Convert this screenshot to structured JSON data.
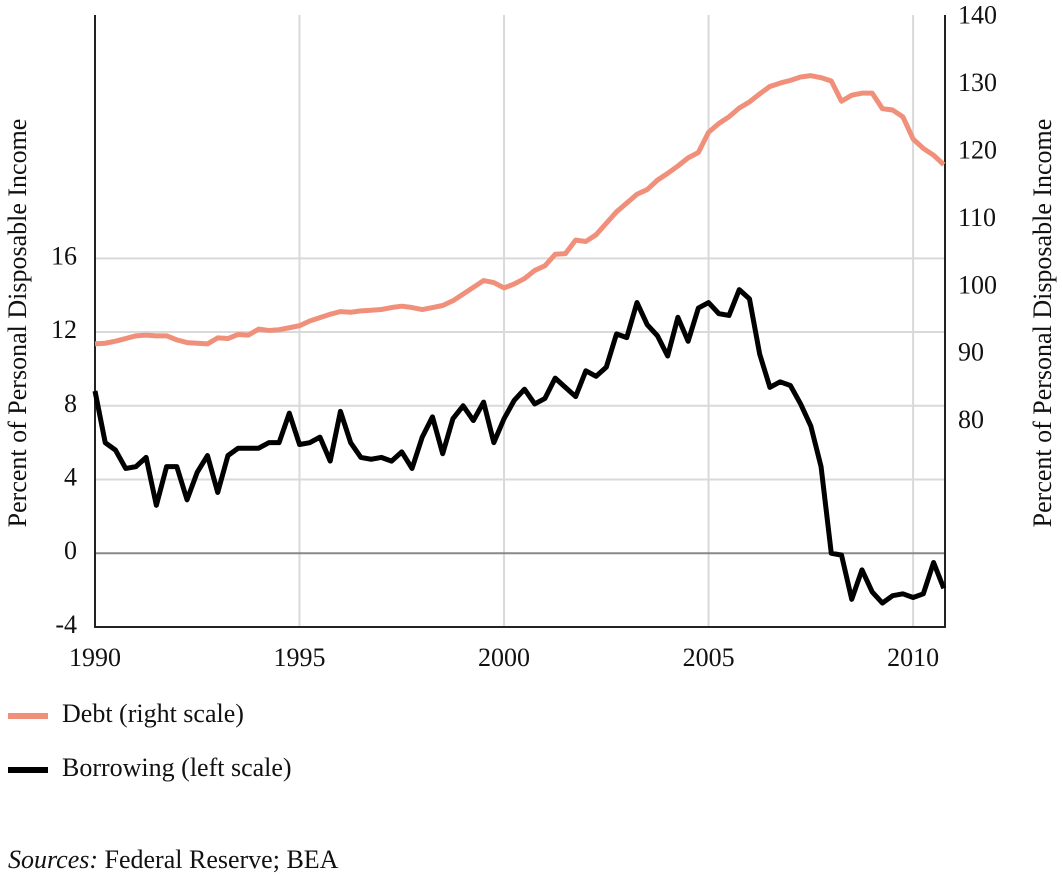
{
  "chart_data": {
    "type": "line",
    "y_label": "Percent of Personal Disposable Income",
    "y2_label": "Percent of Personal Disposable Income",
    "source": {
      "label": "Sources:",
      "text": "Federal Reserve; BEA"
    },
    "x": [
      1990,
      1990.25,
      1990.5,
      1990.75,
      1991,
      1991.25,
      1991.5,
      1991.75,
      1992,
      1992.25,
      1992.5,
      1992.75,
      1993,
      1993.25,
      1993.5,
      1993.75,
      1994,
      1994.25,
      1994.5,
      1994.75,
      1995,
      1995.25,
      1995.5,
      1995.75,
      1996,
      1996.25,
      1996.5,
      1996.75,
      1997,
      1997.25,
      1997.5,
      1997.75,
      1998,
      1998.25,
      1998.5,
      1998.75,
      1999,
      1999.25,
      1999.5,
      1999.75,
      2000,
      2000.25,
      2000.5,
      2000.75,
      2001,
      2001.25,
      2001.5,
      2001.75,
      2002,
      2002.25,
      2002.5,
      2002.75,
      2003,
      2003.25,
      2003.5,
      2003.75,
      2004,
      2004.25,
      2004.5,
      2004.75,
      2005,
      2005.25,
      2005.5,
      2005.75,
      2006,
      2006.25,
      2006.5,
      2006.75,
      2007,
      2007.25,
      2007.5,
      2007.75,
      2008,
      2008.25,
      2008.5,
      2008.75,
      2009,
      2009.25,
      2009.5,
      2009.75,
      2010,
      2010.25,
      2010.5,
      2010.75
    ],
    "series": [
      {
        "name": "Debt (right scale)",
        "color": "#f0907a",
        "axis": "y2",
        "values": [
          91.6,
          91.7,
          92.0,
          92.4,
          92.8,
          92.9,
          92.8,
          92.8,
          92.2,
          91.8,
          91.7,
          91.6,
          92.5,
          92.4,
          93.0,
          92.9,
          93.8,
          93.6,
          93.7,
          94.0,
          94.3,
          95.0,
          95.5,
          96.0,
          96.4,
          96.3,
          96.5,
          96.6,
          96.7,
          97.0,
          97.2,
          97.0,
          96.7,
          97.0,
          97.3,
          98.0,
          99.0,
          100.0,
          101.0,
          100.7,
          99.9,
          100.5,
          101.3,
          102.5,
          103.2,
          104.9,
          105.0,
          107.0,
          106.8,
          107.8,
          109.5,
          111.2,
          112.5,
          113.8,
          114.5,
          115.9,
          116.9,
          118.0,
          119.2,
          120.0,
          123.0,
          124.3,
          125.3,
          126.6,
          127.5,
          128.7,
          129.8,
          130.3,
          130.7,
          131.2,
          131.4,
          131.1,
          130.6,
          127.6,
          128.5,
          128.8,
          128.8,
          126.5,
          126.3,
          125.3,
          122.0,
          120.6,
          119.6,
          118.2
        ]
      },
      {
        "name": "Borrowing (left scale)",
        "color": "#000000",
        "values": [
          8.8,
          6.0,
          5.6,
          4.6,
          4.7,
          5.2,
          2.6,
          4.7,
          4.7,
          2.9,
          4.4,
          5.3,
          3.3,
          5.3,
          5.7,
          5.7,
          5.7,
          6.0,
          6.0,
          7.6,
          5.9,
          6.0,
          6.3,
          5.0,
          7.7,
          6.0,
          5.2,
          5.1,
          5.2,
          5.0,
          5.5,
          4.6,
          6.3,
          7.4,
          5.4,
          7.3,
          8.0,
          7.2,
          8.2,
          6.0,
          7.3,
          8.3,
          8.9,
          8.1,
          8.4,
          9.5,
          9.0,
          8.5,
          9.9,
          9.6,
          10.1,
          11.9,
          11.7,
          13.6,
          12.4,
          11.8,
          10.7,
          12.8,
          11.5,
          13.3,
          13.6,
          13.0,
          12.9,
          14.3,
          13.8,
          10.8,
          9.0,
          9.3,
          9.1,
          8.1,
          6.9,
          4.7,
          0,
          -0.1,
          -2.5,
          -0.9,
          -2.1,
          -2.7,
          -2.3,
          -2.2,
          -2.4,
          -2.2,
          -0.5,
          -1.9
        ]
      }
    ],
    "xlim": [
      1990,
      2010.78
    ],
    "xticks": [
      1990,
      1995,
      2000,
      2005,
      2010
    ],
    "ylim": [
      -4,
      29.2
    ],
    "yticks": [
      -4,
      0,
      4,
      8,
      12,
      16
    ],
    "y2lim": [
      49.6,
      140.4
    ],
    "y2ticks": [
      80,
      90,
      100,
      110,
      120,
      130,
      140
    ],
    "grid": true
  }
}
